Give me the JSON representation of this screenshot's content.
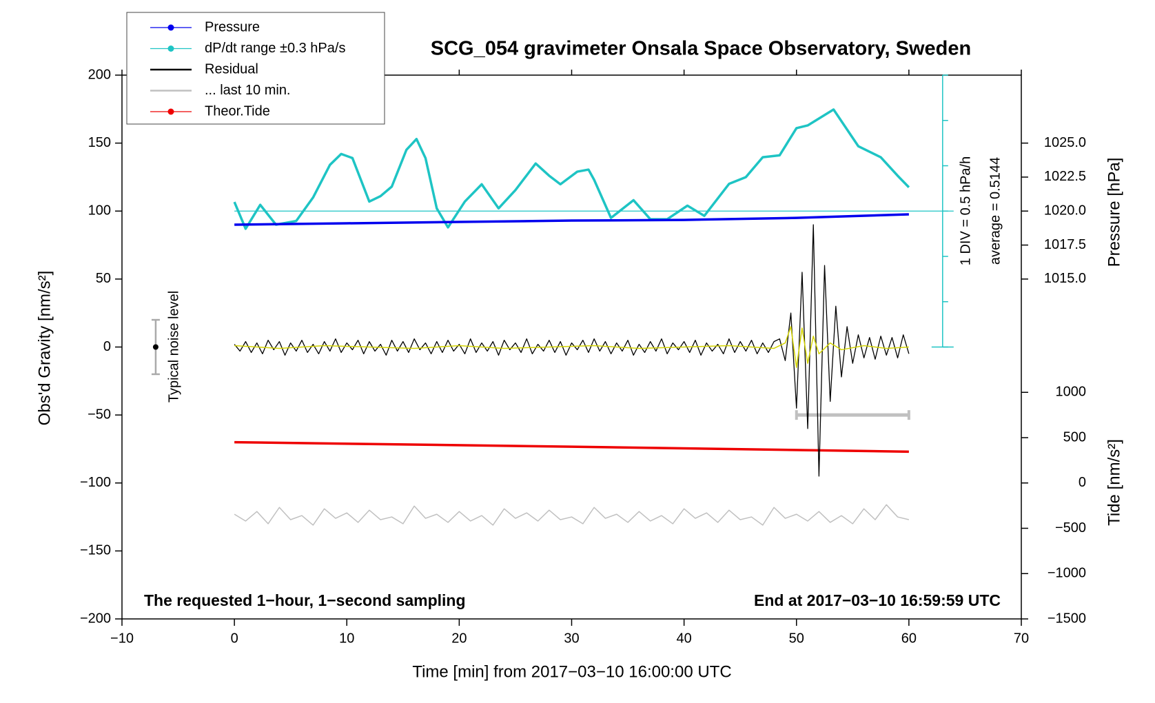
{
  "chart_data": {
    "type": "line",
    "title": "SCG_054 gravimeter Onsala Space Observatory, Sweden",
    "xlabel": "Time [min] from 2017−03−10 16:00:00 UTC",
    "ylabel": "Obs'd Gravity [nm/s²]",
    "y2label": "Pressure [hPa]",
    "y3label": "Tide [nm/s²]",
    "xlim": [
      -10,
      70
    ],
    "xticks": [
      {
        "value": -10,
        "label": "−10"
      },
      0,
      10,
      20,
      30,
      40,
      50,
      60,
      70
    ],
    "ylim": [
      -200,
      200
    ],
    "yticks": [
      {
        "value": -200,
        "label": "−200"
      },
      {
        "value": -150,
        "label": "−150"
      },
      {
        "value": -100,
        "label": "−100"
      },
      {
        "value": -50,
        "label": "−50"
      },
      0,
      50,
      100,
      150,
      200
    ],
    "y2lim": [
      990,
      1030
    ],
    "y2ticks": [
      {
        "value": 1015,
        "label": "1015.0"
      },
      {
        "value": 1017.5,
        "label": "1017.5"
      },
      {
        "value": 1020,
        "label": "1020.0"
      },
      {
        "value": 1022.5,
        "label": "1022.5"
      },
      {
        "value": 1025,
        "label": "1025.0"
      }
    ],
    "y3lim": [
      -1500,
      4500
    ],
    "y3ticks": [
      {
        "value": -1500,
        "label": "−1500"
      },
      {
        "value": -1000,
        "label": "−1000"
      },
      {
        "value": -500,
        "label": "−500"
      },
      0,
      500,
      1000
    ],
    "legend": "upper left",
    "annotations": [
      "The requested 1−hour, 1−second sampling",
      "End at 2017−03−10 16:59:59 UTC",
      "1 DIV = 0.5 hPa/h",
      "average = 0.5144"
    ],
    "dpdt_baseline": 100,
    "noise_bar": {
      "label": "Typical noise level",
      "x": -7,
      "value": 0,
      "error": 20
    },
    "last_window": {
      "x": [
        50,
        60
      ],
      "y": -50
    },
    "series": [
      {
        "name": "Pressure",
        "color": "#0000ee",
        "axis": "y2",
        "legend_marker": true,
        "x": [
          0,
          10,
          20,
          30,
          40,
          50,
          60
        ],
        "values": [
          1019.0,
          1019.1,
          1019.2,
          1019.3,
          1019.35,
          1019.5,
          1019.76
        ]
      },
      {
        "name": "dP/dt range ±0.3 hPa/s",
        "color": "#1ec4c4",
        "legend_marker": true,
        "x": [
          0,
          1,
          2.3,
          3.7,
          5.5,
          7,
          8.5,
          9.5,
          10.5,
          12,
          13,
          14,
          15.3,
          16.2,
          17,
          18,
          19,
          20.5,
          22,
          23.5,
          25,
          26.8,
          28,
          29,
          30.5,
          31.5,
          32,
          33.5,
          35.5,
          37,
          38.5,
          40.3,
          41.8,
          44,
          45.5,
          47,
          48.5,
          50,
          51,
          53.3,
          55.5,
          57.5,
          59,
          60
        ],
        "values": [
          106.7,
          87,
          104.6,
          90,
          92.7,
          110,
          134,
          142,
          139,
          107,
          111,
          118,
          145,
          153,
          139,
          102,
          88,
          107,
          119.7,
          102,
          115.4,
          135,
          126,
          119.7,
          129,
          130.5,
          123,
          95,
          108,
          94,
          94,
          104,
          96.5,
          120,
          125,
          139.6,
          141,
          161,
          163,
          174.7,
          147.7,
          139.6,
          126,
          117.5
        ]
      },
      {
        "name": "Residual",
        "color": "#000000",
        "x": [
          0,
          0.5,
          1,
          1.5,
          2,
          2.5,
          3,
          3.5,
          4,
          4.5,
          5,
          5.5,
          6,
          6.5,
          7,
          7.5,
          8,
          8.5,
          9,
          9.5,
          10,
          10.5,
          11,
          11.5,
          12,
          12.5,
          13,
          13.5,
          14,
          14.5,
          15,
          15.5,
          16,
          16.5,
          17,
          17.5,
          18,
          18.5,
          19,
          19.5,
          20,
          20.5,
          21,
          21.5,
          22,
          22.5,
          23,
          23.5,
          24,
          24.5,
          25,
          25.5,
          26,
          26.5,
          27,
          27.5,
          28,
          28.5,
          29,
          29.5,
          30,
          30.5,
          31,
          31.5,
          32,
          32.5,
          33,
          33.5,
          34,
          34.5,
          35,
          35.5,
          36,
          36.5,
          37,
          37.5,
          38,
          38.5,
          39,
          39.5,
          40,
          40.5,
          41,
          41.5,
          42,
          42.5,
          43,
          43.5,
          44,
          44.5,
          45,
          45.5,
          46,
          46.5,
          47,
          47.5,
          48,
          48.5,
          49,
          49.5,
          50,
          50.5,
          51,
          51.5,
          52,
          52.5,
          53,
          53.5,
          54,
          54.5,
          55,
          55.5,
          56,
          56.5,
          57,
          57.5,
          58,
          58.5,
          59,
          59.5,
          60
        ],
        "values": [
          2,
          -3,
          4,
          -4,
          3,
          -5,
          5,
          -2,
          4,
          -6,
          3,
          -3,
          5,
          -4,
          2,
          -5,
          4,
          -3,
          6,
          -4,
          3,
          -2,
          5,
          -5,
          4,
          -3,
          2,
          -6,
          5,
          -3,
          4,
          -4,
          6,
          -2,
          3,
          -5,
          4,
          -4,
          5,
          -3,
          2,
          -5,
          6,
          -4,
          3,
          -3,
          4,
          -6,
          5,
          -2,
          3,
          -4,
          6,
          -5,
          2,
          -3,
          5,
          -4,
          4,
          -6,
          3,
          -2,
          5,
          -4,
          6,
          -3,
          4,
          -5,
          3,
          -3,
          5,
          -6,
          2,
          -4,
          4,
          -3,
          6,
          -5,
          3,
          -2,
          4,
          -4,
          5,
          -6,
          3,
          -3,
          2,
          -5,
          6,
          -4,
          4,
          -3,
          5,
          -5,
          3,
          -4,
          4,
          6,
          -10,
          25,
          -45,
          55,
          -60,
          90,
          -95,
          60,
          -40,
          30,
          -22,
          15,
          -12,
          9,
          -8,
          7,
          -9,
          8,
          -6,
          7,
          -8,
          9,
          -5
        ]
      },
      {
        "name": "... last 10 min.",
        "color": "#c0c0c0",
        "x": [
          0,
          1,
          2,
          3,
          4,
          5,
          6,
          7,
          8,
          9,
          10,
          11,
          12,
          13,
          14,
          15,
          16,
          17,
          18,
          19,
          20,
          21,
          22,
          23,
          24,
          25,
          26,
          27,
          28,
          29,
          30,
          31,
          32,
          33,
          34,
          35,
          36,
          37,
          38,
          39,
          40,
          41,
          42,
          43,
          44,
          45,
          46,
          47,
          48,
          49,
          50,
          51,
          52,
          53,
          54,
          55,
          56,
          57,
          58,
          59,
          60
        ],
        "values": [
          -123,
          -128,
          -121,
          -130,
          -118,
          -127,
          -124,
          -131,
          -119,
          -126,
          -122,
          -129,
          -120,
          -127,
          -125,
          -130,
          -117,
          -126,
          -123,
          -129,
          -121,
          -128,
          -124,
          -131,
          -119,
          -126,
          -122,
          -128,
          -120,
          -127,
          -125,
          -130,
          -118,
          -126,
          -123,
          -129,
          -121,
          -128,
          -124,
          -130,
          -119,
          -126,
          -122,
          -129,
          -120,
          -127,
          -125,
          -131,
          -118,
          -126,
          -123,
          -128,
          -121,
          -129,
          -124,
          -130,
          -119,
          -127,
          -116,
          -125,
          -127
        ]
      },
      {
        "name": "Theor.Tide",
        "color": "#ee0000",
        "axis": "y3",
        "legend_marker": true,
        "x": [
          0,
          30,
          60
        ],
        "values": [
          450,
          400,
          345
        ]
      },
      {
        "color": "#d4d400",
        "x": [
          0,
          4,
          8,
          12,
          16,
          20,
          24,
          28,
          32,
          36,
          40,
          44,
          48,
          49,
          49.5,
          50,
          50.5,
          51,
          51.5,
          52,
          53,
          54,
          56,
          58,
          60
        ],
        "values": [
          1,
          -1,
          1,
          0,
          -1,
          1,
          -1,
          0,
          1,
          -1,
          0,
          1,
          -1,
          3,
          15,
          -15,
          14,
          -12,
          8,
          -5,
          3,
          -2,
          1,
          -1,
          0
        ]
      }
    ]
  }
}
